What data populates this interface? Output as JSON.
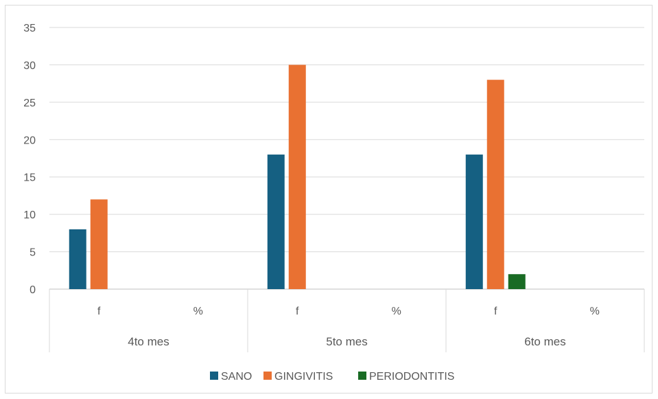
{
  "chart_data": {
    "type": "bar",
    "title": "",
    "xlabel": "",
    "ylabel": "",
    "ylim": [
      0,
      35
    ],
    "yticks": [
      0,
      5,
      10,
      15,
      20,
      25,
      30,
      35
    ],
    "grid": true,
    "legend_position": "bottom",
    "groups": [
      {
        "label": "4to mes",
        "categories": [
          "f",
          "%"
        ]
      },
      {
        "label": "5to mes",
        "categories": [
          "f",
          "%"
        ]
      },
      {
        "label": "6to mes",
        "categories": [
          "f",
          "%"
        ]
      }
    ],
    "series": [
      {
        "name": "SANO",
        "color": "#156082",
        "values": [
          8,
          null,
          18,
          null,
          18,
          null
        ]
      },
      {
        "name": "GINGIVITIS",
        "color": "#E97132",
        "values": [
          12,
          null,
          30,
          null,
          28,
          null
        ]
      },
      {
        "name": "PERIODONTITIS",
        "color": "#196B24",
        "values": [
          0,
          null,
          0,
          null,
          2,
          null
        ]
      }
    ]
  }
}
